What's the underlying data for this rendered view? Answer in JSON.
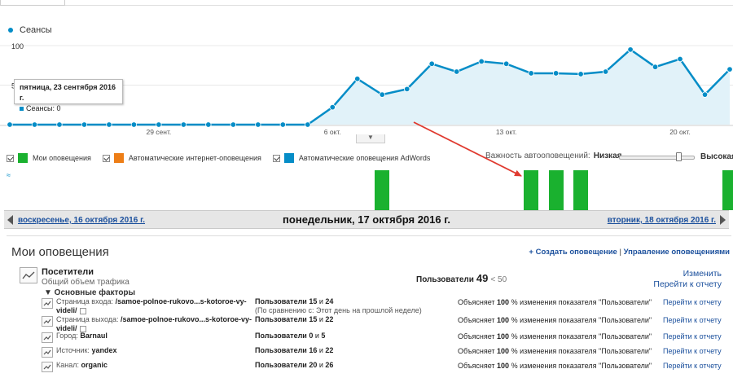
{
  "legend": {
    "series": "Сеансы",
    "color": "#058dc7"
  },
  "chart_data": {
    "type": "area",
    "series": [
      {
        "name": "Сеансы",
        "color": "#058dc7",
        "values": [
          0,
          0,
          0,
          0,
          0,
          0,
          0,
          0,
          0,
          0,
          0,
          0,
          0,
          22,
          58,
          38,
          45,
          77,
          67,
          80,
          77,
          65,
          65,
          64,
          67,
          95,
          73,
          83,
          38,
          70
        ]
      }
    ],
    "x_tick_labels": [
      {
        "label": "29 сент.",
        "index": 6
      },
      {
        "label": "6 окт.",
        "index": 13
      },
      {
        "label": "13 окт.",
        "index": 20
      },
      {
        "label": "20 окт.",
        "index": 27
      }
    ],
    "y_tick_labels": [
      "100",
      "50"
    ],
    "ylim": [
      0,
      100
    ]
  },
  "tooltip": {
    "date": "пятница, 23 сентября 2016 г.",
    "value": "Сеансы: 0"
  },
  "annotations_legend": [
    {
      "label": "Мои оповещения",
      "color": "#1ab12f"
    },
    {
      "label": "Автоматические интернет-оповещения",
      "color": "#ed7e17"
    },
    {
      "label": "Автоматические оповещения AdWords",
      "color": "#058dc7"
    }
  ],
  "sensitivity": {
    "label": "Важность автооповещений:",
    "low": "Низкая",
    "high": "Высокая",
    "level": 0.78
  },
  "annotation_bars": [
    15,
    21,
    22,
    23,
    29
  ],
  "annotation_edge_mark": "≈",
  "date_nav": {
    "prev": "воскресенье, 16 октября 2016 г.",
    "current": "понедельник, 17 октября 2016 г.",
    "next": "вторник, 18 октября 2016 г."
  },
  "panel": {
    "title": "Мои оповещения",
    "create": "+ Создать оповещение",
    "sep": " | ",
    "manage": "Управление оповещениями"
  },
  "alert": {
    "name": "Посетители",
    "subtitle": "Общий объем трафика",
    "metric_label": "Пользователи",
    "metric_value": "49",
    "metric_limit": "< 50",
    "edit": "Изменить",
    "goto": "Перейти к отчету",
    "factors_heading": "▼ Основные факторы"
  },
  "factors": [
    {
      "dim": "Страница входа:",
      "val": "/samoe-polnoe-rukovo...s-kotoroe-vy-",
      "val2": "videli/",
      "users": "Пользователи",
      "a": "15",
      "b": "24",
      "compare": "(По сравнению с: Этот день на прошлой неделе)",
      "expl": "Объясняет",
      "pct": "100",
      "expl2": "% изменения показателя \"Пользователи\"",
      "go": "Перейти к отчету"
    },
    {
      "dim": "Страница выхода:",
      "val": "/samoe-polnoe-rukovo...s-kotoroe-vy-",
      "val2": "videli/",
      "users": "Пользователи",
      "a": "15",
      "b": "22",
      "compare": "",
      "expl": "Объясняет",
      "pct": "100",
      "expl2": "% изменения показателя \"Пользователи\"",
      "go": "Перейти к отчету"
    },
    {
      "dim": "Город:",
      "val": "Barnaul",
      "val2": "",
      "users": "Пользователи",
      "a": "0",
      "b": "5",
      "compare": "",
      "expl": "Объясняет",
      "pct": "100",
      "expl2": "% изменения показателя \"Пользователи\"",
      "go": "Перейти к отчету"
    },
    {
      "dim": "Источник:",
      "val": "yandex",
      "val2": "",
      "users": "Пользователи",
      "a": "16",
      "b": "22",
      "compare": "",
      "expl": "Объясняет",
      "pct": "100",
      "expl2": "% изменения показателя \"Пользователи\"",
      "go": "Перейти к отчету"
    },
    {
      "dim": "Канал:",
      "val": "organic",
      "val2": "",
      "users": "Пользователи",
      "a": "20",
      "b": "26",
      "compare": "",
      "expl": "Объясняет",
      "pct": "100",
      "expl2": "% изменения показателя \"Пользователи\"",
      "go": "Перейти к отчету"
    }
  ],
  "factors_and": "и",
  "colors": {
    "accent": "#058dc7",
    "area_fill": "#e1f2f9",
    "alert_bar": "#1ab12f",
    "arrow": "#e03a2f",
    "link": "#1a4f9c"
  }
}
